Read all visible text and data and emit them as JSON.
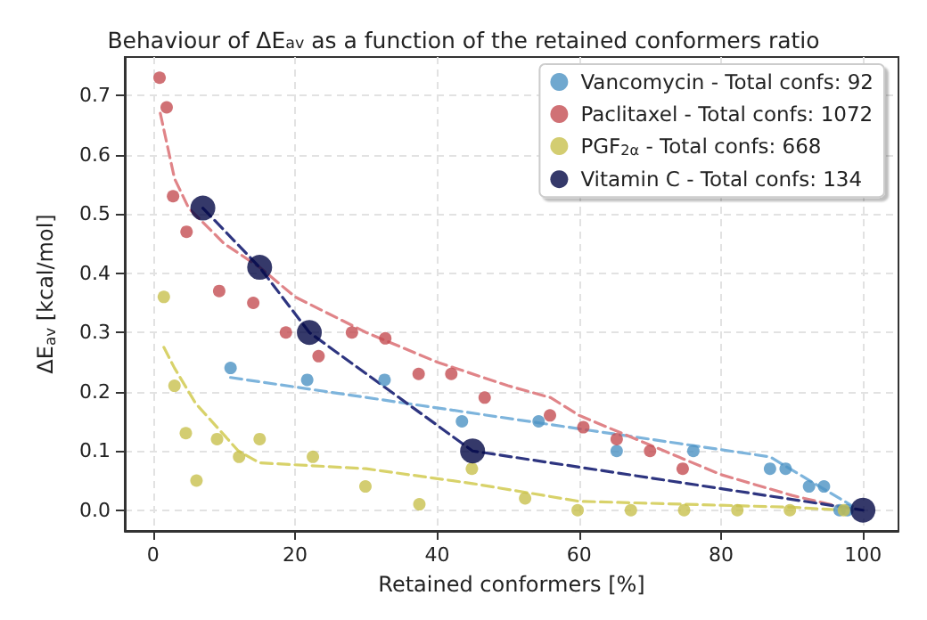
{
  "chart_data": {
    "type": "scatter",
    "title": "Behaviour of ΔE$_{av}$ as a function of the retained conformers ratio",
    "xlabel": "Retained conformers [%]",
    "ylabel": "ΔE$_{av}$ [kcal/mol]",
    "xlim": [
      -4,
      105
    ],
    "xticks": [
      0,
      20,
      40,
      60,
      80,
      100
    ],
    "ylim": [
      -0.035,
      0.765
    ],
    "yticks": [
      {
        "value": 0,
        "label": "0.0"
      },
      0.1,
      0.2,
      0.3,
      0.4,
      0.5,
      0.6,
      0.7
    ],
    "grid": true,
    "legend": "top right",
    "marker": "circle",
    "series": [
      {
        "name": "Vancomycin - Total confs: 92",
        "color": "#4c92c3",
        "x": [
          10.9,
          21.7,
          32.6,
          43.5,
          54.3,
          65.3,
          76.1,
          86.9,
          89.1,
          92.4,
          94.5,
          96.7,
          97.8
        ],
        "values": [
          0.24,
          0.22,
          0.22,
          0.15,
          0.15,
          0.1,
          0.1,
          0.07,
          0.07,
          0.04,
          0.04,
          0.0,
          0.0
        ]
      },
      {
        "name": "Paclitaxel - Total confs: 1072",
        "color": "#c44e52",
        "x": [
          0.9,
          1.9,
          2.8,
          4.7,
          9.3,
          14.1,
          18.7,
          23.3,
          28,
          32.7,
          37.4,
          42,
          46.7,
          55.9,
          60.6,
          65.3,
          70,
          74.6
        ],
        "values": [
          0.73,
          0.68,
          0.53,
          0.47,
          0.37,
          0.35,
          0.3,
          0.26,
          0.3,
          0.29,
          0.23,
          0.23,
          0.19,
          0.16,
          0.14,
          0.12,
          0.1,
          0.07
        ]
      },
      {
        "name": "PGF$_{2α}$ - Total confs: 668",
        "color": "#c8c04e",
        "x": [
          1.5,
          3.0,
          4.6,
          6.1,
          9.0,
          12.1,
          15,
          22.5,
          29.9,
          37.5,
          44.9,
          52.4,
          59.8,
          67.3,
          74.8,
          82.3,
          89.7,
          97.3
        ],
        "values": [
          0.36,
          0.21,
          0.13,
          0.05,
          0.12,
          0.09,
          0.12,
          0.09,
          0.04,
          0.01,
          0.07,
          0.02,
          0.0,
          0.0,
          0.0,
          0.0,
          0.0,
          0.0
        ]
      },
      {
        "name": "Vitamin C - Total confs: 134",
        "color": "#030845",
        "x": [
          7,
          15,
          22,
          45,
          100
        ],
        "values": [
          0.51,
          0.41,
          0.3,
          0.1,
          0.0
        ]
      },
      {
        "type": "line",
        "color": "#7db4dc",
        "line_style": "dashed",
        "marker": "none",
        "x": [
          10.9,
          86.9,
          98.5
        ],
        "values": [
          0.224,
          0.09,
          0.007
        ]
      },
      {
        "type": "line",
        "color": "#e08488",
        "line_style": "dashed",
        "marker": "none",
        "x": [
          1,
          3,
          5,
          10,
          15,
          20,
          30,
          40,
          50,
          56,
          60,
          70,
          80,
          90,
          97
        ],
        "values": [
          0.67,
          0.56,
          0.51,
          0.45,
          0.41,
          0.36,
          0.3,
          0.25,
          0.21,
          0.19,
          0.16,
          0.11,
          0.06,
          0.025,
          0.005
        ]
      },
      {
        "type": "line",
        "color": "#d8d26a",
        "line_style": "dashed",
        "marker": "none",
        "x": [
          1.5,
          3,
          6,
          9,
          12,
          15,
          30,
          45,
          60,
          75,
          90,
          97
        ],
        "values": [
          0.275,
          0.24,
          0.18,
          0.14,
          0.1,
          0.08,
          0.07,
          0.045,
          0.015,
          0.01,
          0.005,
          0.0
        ]
      },
      {
        "type": "line",
        "color": "#2e3580",
        "line_style": "dashed",
        "marker": "none",
        "x": [
          7,
          15,
          22,
          45,
          100
        ],
        "values": [
          0.51,
          0.41,
          0.3,
          0.1,
          0.0
        ]
      }
    ]
  }
}
